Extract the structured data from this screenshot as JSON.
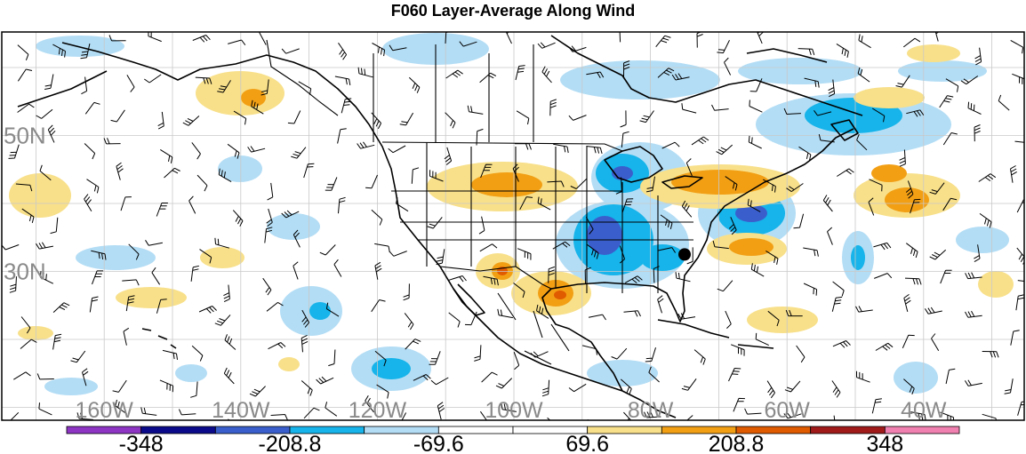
{
  "title": "F060 Layer-Average Along Wind",
  "lat_labels": [
    {
      "text": "50N",
      "lat": 50
    },
    {
      "text": "30N",
      "lat": 30
    }
  ],
  "lon_labels": [
    {
      "text": "160W",
      "lon": -160
    },
    {
      "text": "140W",
      "lon": -140
    },
    {
      "text": "120W",
      "lon": -120
    },
    {
      "text": "100W",
      "lon": -100
    },
    {
      "text": "80W",
      "lon": -80
    },
    {
      "text": "60W",
      "lon": -60
    },
    {
      "text": "40W",
      "lon": -40
    }
  ],
  "colorbar": {
    "colors": [
      "#8e35c4",
      "#0a0a8a",
      "#3a5fcd",
      "#16b4ea",
      "#b3ddf5",
      "#ffffff",
      "#ffffff",
      "#f8e08a",
      "#f29f14",
      "#e05a00",
      "#a01a1a",
      "#f080b0"
    ],
    "labels": [
      "-348",
      "-208.8",
      "-69.6",
      "69.6",
      "208.8",
      "348"
    ]
  },
  "marker": {
    "lat": 32.5,
    "lon": -75,
    "name": "storm-center"
  }
}
